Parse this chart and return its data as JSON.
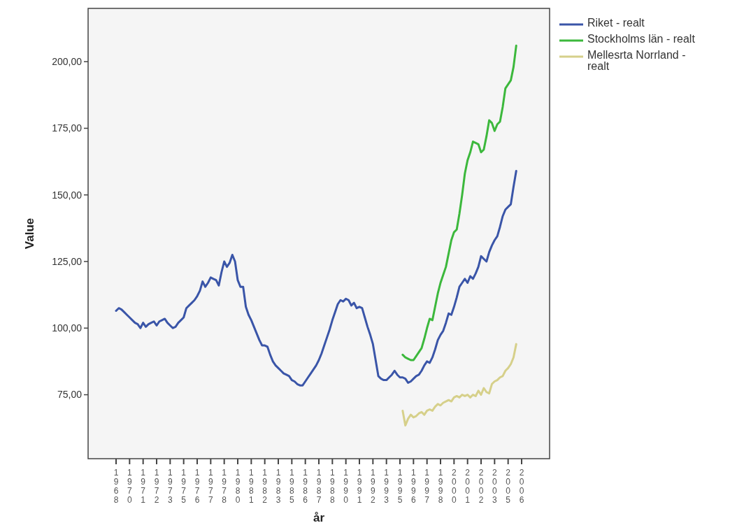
{
  "chart_data": {
    "type": "line",
    "xlabel": "år",
    "ylabel": "Value",
    "ylim": [
      51,
      220
    ],
    "yticks": [
      {
        "value": 75,
        "label": "75,00"
      },
      {
        "value": 100,
        "label": "100,00"
      },
      {
        "value": 125,
        "label": "125,00"
      },
      {
        "value": 150,
        "label": "150,00"
      },
      {
        "value": 175,
        "label": "175,00"
      },
      {
        "value": 200,
        "label": "200,00"
      }
    ],
    "legend": "right",
    "grid": false,
    "categories": [
      "1968",
      null,
      null,
      null,
      null,
      "1970",
      null,
      null,
      null,
      null,
      "1971",
      null,
      null,
      null,
      null,
      "1972",
      null,
      null,
      null,
      null,
      "1973",
      null,
      null,
      null,
      null,
      "1975",
      null,
      null,
      null,
      null,
      "1976",
      null,
      null,
      null,
      null,
      "1977",
      null,
      null,
      null,
      null,
      "1978",
      null,
      null,
      null,
      null,
      "1980",
      null,
      null,
      null,
      null,
      "1981",
      null,
      null,
      null,
      null,
      "1982",
      null,
      null,
      null,
      null,
      "1983",
      null,
      null,
      null,
      null,
      "1985",
      null,
      null,
      null,
      null,
      "1986",
      null,
      null,
      null,
      null,
      "1987",
      null,
      null,
      null,
      null,
      "1988",
      null,
      null,
      null,
      null,
      "1990",
      null,
      null,
      null,
      null,
      "1991",
      null,
      null,
      null,
      null,
      "1992",
      null,
      null,
      null,
      null,
      "1993",
      null,
      null,
      null,
      null,
      "1995",
      null,
      null,
      null,
      null,
      "1996",
      null,
      null,
      null,
      null,
      "1997",
      null,
      null,
      null,
      null,
      "1998",
      null,
      null,
      null,
      null,
      "2000",
      null,
      null,
      null,
      null,
      "2001",
      null,
      null,
      null,
      null,
      "2002",
      null,
      null,
      null,
      null,
      "2003",
      null,
      null,
      null,
      null,
      "2005",
      null,
      null,
      null,
      null,
      "2006"
    ],
    "series": [
      {
        "name": "Riket - realt",
        "color": "#3a55a8",
        "values": [
          106.5,
          107.5,
          107,
          106,
          105,
          104,
          103,
          102,
          101.5,
          100,
          102,
          100.5,
          101.5,
          102,
          102.5,
          101,
          102.5,
          103,
          103.5,
          102,
          101,
          100,
          100.5,
          102,
          103,
          104,
          107.5,
          108.5,
          109.5,
          110.5,
          112,
          114,
          117.5,
          115.5,
          117,
          119,
          118.5,
          118,
          116,
          121,
          125,
          123,
          124.5,
          127.5,
          125,
          118,
          115.5,
          115.5,
          108,
          105,
          103,
          100.5,
          98,
          95.5,
          93.5,
          93.5,
          93,
          90,
          87.5,
          86,
          85,
          84,
          83,
          82.5,
          82,
          80.5,
          80,
          79,
          78.5,
          78.5,
          80,
          81.5,
          83,
          84.5,
          86,
          88,
          90.5,
          93.5,
          96.5,
          99.5,
          103,
          106,
          109,
          110.5,
          110,
          111,
          110.5,
          108.5,
          109.5,
          107.5,
          108,
          107.5,
          104,
          100.5,
          97.5,
          94,
          88,
          82,
          81,
          80.5,
          80.5,
          81.5,
          82.5,
          84,
          82.5,
          81.5,
          81.5,
          81,
          79.5,
          80,
          81,
          82,
          82.5,
          84,
          86,
          87.5,
          87,
          89,
          92,
          95.5,
          97.5,
          99,
          102,
          105.5,
          105,
          108,
          111.5,
          115.5,
          117,
          118.5,
          117,
          119.5,
          118.5,
          120.5,
          123,
          127,
          126,
          125,
          128.5,
          131,
          133,
          134.5,
          138,
          142,
          144.5,
          145.5,
          146.5,
          153,
          159,
          null,
          null
        ]
      },
      {
        "name": "Stockholms län - realt",
        "color": "#3cb83c",
        "values": [
          null,
          null,
          null,
          null,
          null,
          null,
          null,
          null,
          null,
          null,
          null,
          null,
          null,
          null,
          null,
          null,
          null,
          null,
          null,
          null,
          null,
          null,
          null,
          null,
          null,
          null,
          null,
          null,
          null,
          null,
          null,
          null,
          null,
          null,
          null,
          null,
          null,
          null,
          null,
          null,
          null,
          null,
          null,
          null,
          null,
          null,
          null,
          null,
          null,
          null,
          null,
          null,
          null,
          null,
          null,
          null,
          null,
          null,
          null,
          null,
          null,
          null,
          null,
          null,
          null,
          null,
          null,
          null,
          null,
          null,
          null,
          null,
          null,
          null,
          null,
          null,
          null,
          null,
          null,
          null,
          null,
          null,
          null,
          null,
          null,
          null,
          null,
          null,
          null,
          null,
          null,
          null,
          null,
          null,
          null,
          null,
          null,
          null,
          null,
          null,
          null,
          null,
          null,
          null,
          null,
          null,
          90,
          89,
          88.5,
          88,
          88,
          89.5,
          91,
          92.5,
          96,
          100,
          103.5,
          103,
          108,
          113,
          117,
          120,
          123,
          128,
          133,
          136,
          137,
          143,
          150,
          158,
          163,
          166,
          170,
          169.5,
          169,
          166,
          167,
          172,
          178,
          177,
          174,
          176.5,
          177.5,
          183,
          190,
          191.5,
          193,
          198,
          206,
          null,
          null
        ]
      },
      {
        "name": "Mellesrta Norrland - realt",
        "color": "#d6d08a",
        "values": [
          null,
          null,
          null,
          null,
          null,
          null,
          null,
          null,
          null,
          null,
          null,
          null,
          null,
          null,
          null,
          null,
          null,
          null,
          null,
          null,
          null,
          null,
          null,
          null,
          null,
          null,
          null,
          null,
          null,
          null,
          null,
          null,
          null,
          null,
          null,
          null,
          null,
          null,
          null,
          null,
          null,
          null,
          null,
          null,
          null,
          null,
          null,
          null,
          null,
          null,
          null,
          null,
          null,
          null,
          null,
          null,
          null,
          null,
          null,
          null,
          null,
          null,
          null,
          null,
          null,
          null,
          null,
          null,
          null,
          null,
          null,
          null,
          null,
          null,
          null,
          null,
          null,
          null,
          null,
          null,
          null,
          null,
          null,
          null,
          null,
          null,
          null,
          null,
          null,
          null,
          null,
          null,
          null,
          null,
          null,
          null,
          null,
          null,
          null,
          null,
          null,
          null,
          null,
          null,
          null,
          null,
          69,
          63.5,
          66,
          67.5,
          66.5,
          67,
          68,
          68.5,
          67.5,
          69,
          69.5,
          69,
          70.5,
          71.5,
          71,
          72,
          72.5,
          73,
          72.5,
          74,
          74.5,
          74,
          75,
          74.5,
          75,
          74,
          75,
          74.5,
          76.5,
          75,
          77.5,
          76,
          75.5,
          79,
          80,
          80.5,
          81.5,
          82,
          84,
          85,
          86.5,
          89,
          94,
          null,
          null
        ]
      }
    ]
  }
}
